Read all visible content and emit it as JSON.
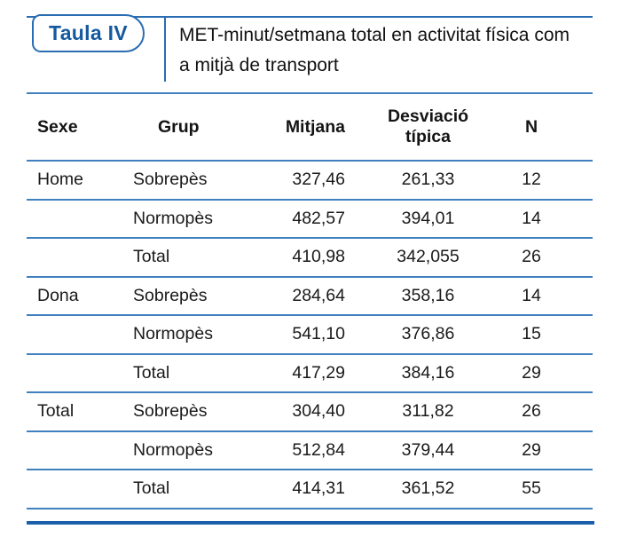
{
  "figure": {
    "badge_label": "Taula IV",
    "title": "MET-minut/setmana total en activitat física com a mitjà de transport"
  },
  "colors": {
    "accent_blue": "#2a6db3",
    "badge_text_blue": "#15599f",
    "row_rule_blue": "#4080bf",
    "bottom_rule_blue": "#1c5fa9",
    "text": "#1a1a1a"
  },
  "table": {
    "headers": [
      "Sexe",
      "Grup",
      "Mitjana",
      "Desviació típica",
      "N"
    ],
    "rows": [
      [
        "Home",
        "Sobrepès",
        "327,46",
        "261,33",
        "12"
      ],
      [
        "",
        "Normopès",
        "482,57",
        "394,01",
        "14"
      ],
      [
        "",
        "Total",
        "410,98",
        "342,055",
        "26"
      ],
      [
        "Dona",
        "Sobrepès",
        "284,64",
        "358,16",
        "14"
      ],
      [
        "",
        "Normopès",
        "541,10",
        "376,86",
        "15"
      ],
      [
        "",
        "Total",
        "417,29",
        "384,16",
        "29"
      ],
      [
        "Total",
        "Sobrepès",
        "304,40",
        "311,82",
        "26"
      ],
      [
        "",
        "Normopès",
        "512,84",
        "379,44",
        "29"
      ],
      [
        "",
        "Total",
        "414,31",
        "361,52",
        "55"
      ]
    ]
  }
}
